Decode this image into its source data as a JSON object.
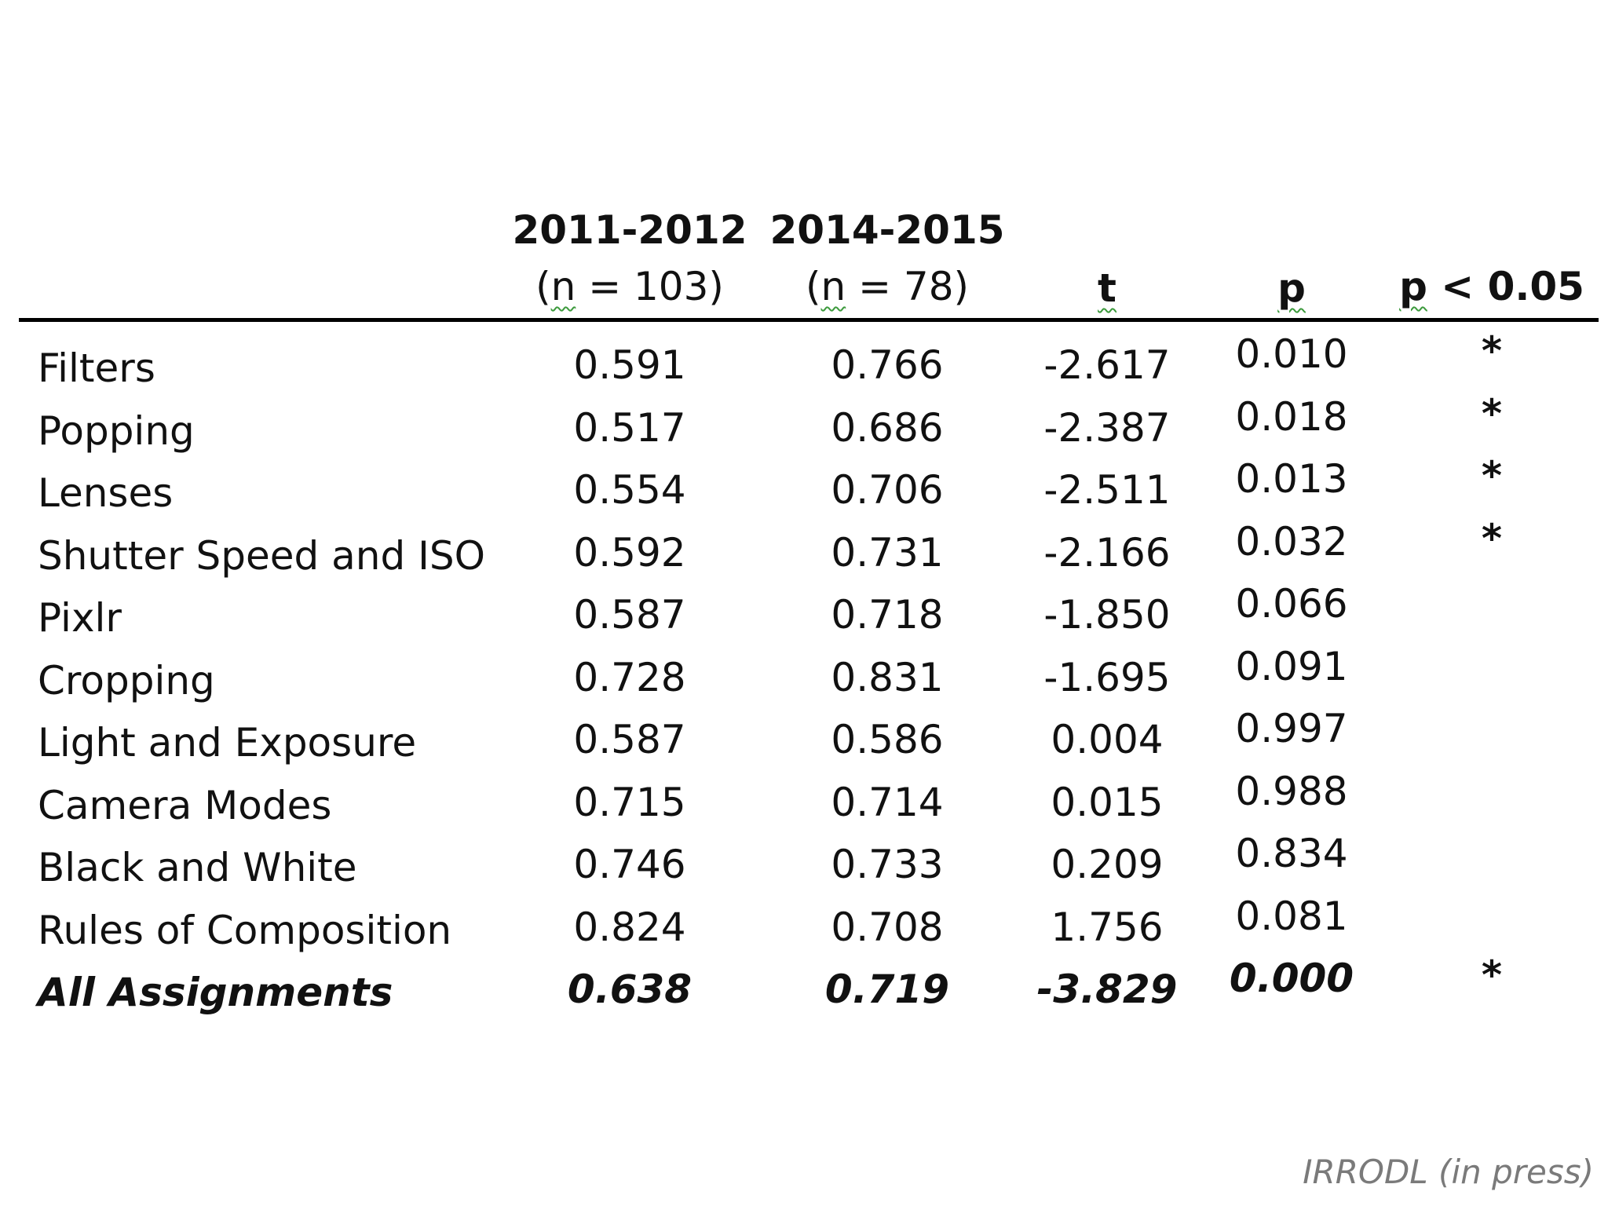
{
  "header": {
    "col1_years": "2011-2012",
    "col1_n_open": "(",
    "col1_n_sym": "n",
    "col1_n_rest": " = 103)",
    "col2_years": "2014-2015",
    "col2_n_open": "(",
    "col2_n_sym": "n",
    "col2_n_rest": " = 78)",
    "t": "t",
    "p": "p",
    "sig_sym": "p",
    "sig_rest": " < 0.05"
  },
  "rows": [
    {
      "label": "Filters",
      "v1": "0.591",
      "v2": "0.766",
      "t": "-2.617",
      "p": "0.010",
      "sig": "*"
    },
    {
      "label": "Popping",
      "v1": "0.517",
      "v2": "0.686",
      "t": "-2.387",
      "p": "0.018",
      "sig": "*"
    },
    {
      "label": "Lenses",
      "v1": "0.554",
      "v2": "0.706",
      "t": "-2.511",
      "p": "0.013",
      "sig": "*"
    },
    {
      "label": "Shutter Speed and ISO",
      "v1": "0.592",
      "v2": "0.731",
      "t": "-2.166",
      "p": "0.032",
      "sig": "*"
    },
    {
      "label": "Pixlr",
      "v1": "0.587",
      "v2": "0.718",
      "t": "-1.850",
      "p": "0.066",
      "sig": ""
    },
    {
      "label": "Cropping",
      "v1": "0.728",
      "v2": "0.831",
      "t": "-1.695",
      "p": "0.091",
      "sig": ""
    },
    {
      "label": "Light and Exposure",
      "v1": "0.587",
      "v2": "0.586",
      "t": "0.004",
      "p": "0.997",
      "sig": ""
    },
    {
      "label": "Camera Modes",
      "v1": "0.715",
      "v2": "0.714",
      "t": "0.015",
      "p": "0.988",
      "sig": ""
    },
    {
      "label": "Black and White",
      "v1": "0.746",
      "v2": "0.733",
      "t": "0.209",
      "p": "0.834",
      "sig": ""
    },
    {
      "label": "Rules of Composition",
      "v1": "0.824",
      "v2": "0.708",
      "t": "1.756",
      "p": "0.081",
      "sig": ""
    },
    {
      "label": "All Assignments",
      "v1": "0.638",
      "v2": "0.719",
      "t": "-3.829",
      "p": "0.000",
      "sig": "*"
    }
  ],
  "source": "IRRODL (in press)"
}
